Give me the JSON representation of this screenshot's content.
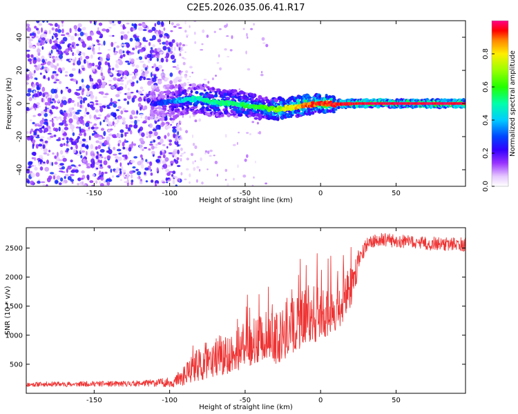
{
  "title": "C2E5.2026.035.06.41.R17",
  "chart_data": [
    {
      "type": "heatmap",
      "name": "spectrogram",
      "xlabel": "Height of straight line (km)",
      "ylabel": "Frequency (Hz)",
      "xlim": [
        -195,
        96
      ],
      "ylim": [
        -50,
        50
      ],
      "xticks": [
        -150,
        -100,
        -50,
        0,
        50
      ],
      "yticks": [
        -40,
        -20,
        0,
        20,
        40
      ],
      "colorbar": {
        "label": "Normalized spectral amplitude",
        "ticks": [
          0.0,
          0.2,
          0.4,
          0.6,
          0.8
        ],
        "range": [
          0,
          1
        ]
      },
      "noise_region_km": [
        -195,
        -93
      ],
      "signal_onset_km": -112,
      "ridge": [
        {
          "x": -112,
          "f": 0.0,
          "a": 0.22
        },
        {
          "x": -100,
          "f": 1.0,
          "a": 0.32
        },
        {
          "x": -90,
          "f": 2.5,
          "a": 0.42
        },
        {
          "x": -80,
          "f": 3.0,
          "a": 0.48
        },
        {
          "x": -70,
          "f": 0.5,
          "a": 0.5
        },
        {
          "x": -60,
          "f": 0.0,
          "a": 0.52
        },
        {
          "x": -50,
          "f": -1.0,
          "a": 0.55
        },
        {
          "x": -40,
          "f": -2.5,
          "a": 0.58
        },
        {
          "x": -30,
          "f": -3.5,
          "a": 0.65
        },
        {
          "x": -20,
          "f": -2.5,
          "a": 0.78
        },
        {
          "x": -10,
          "f": -1.0,
          "a": 0.88
        },
        {
          "x": 0,
          "f": 0.0,
          "a": 0.92
        },
        {
          "x": 10,
          "f": -0.5,
          "a": 0.95
        },
        {
          "x": 25,
          "f": 0.0,
          "a": 0.97
        },
        {
          "x": 50,
          "f": 0.0,
          "a": 0.98
        },
        {
          "x": 75,
          "f": 0.0,
          "a": 0.98
        },
        {
          "x": 96,
          "f": 0.0,
          "a": 0.98
        }
      ]
    },
    {
      "type": "line",
      "name": "snr",
      "xlabel": "Height of straight line (km)",
      "ylabel": "SNR (10 * v/v)",
      "xlim": [
        -195,
        96
      ],
      "ylim": [
        0,
        2850
      ],
      "xticks": [
        -150,
        -100,
        -50,
        0,
        50
      ],
      "yticks": [
        500,
        1000,
        1500,
        2000,
        2500
      ],
      "color": "#ee3333",
      "series": [
        {
          "name": "SNR",
          "x": [
            -195,
            -180,
            -165,
            -150,
            -135,
            -120,
            -110,
            -100,
            -95,
            -90,
            -85,
            -80,
            -75,
            -70,
            -65,
            -60,
            -55,
            -50,
            -45,
            -40,
            -35,
            -30,
            -25,
            -20,
            -15,
            -10,
            -5,
            0,
            5,
            10,
            15,
            20,
            25,
            30,
            35,
            40,
            50,
            60,
            70,
            80,
            96
          ],
          "y": [
            150,
            160,
            155,
            165,
            160,
            170,
            180,
            190,
            210,
            260,
            350,
            420,
            480,
            520,
            560,
            600,
            650,
            700,
            760,
            800,
            850,
            780,
            900,
            1000,
            1100,
            1150,
            1200,
            1250,
            1300,
            1380,
            1480,
            1700,
            2200,
            2550,
            2620,
            2650,
            2620,
            2600,
            2580,
            2570,
            2560
          ]
        }
      ],
      "noise_amplitude": [
        [
          -195,
          40
        ],
        [
          -120,
          50
        ],
        [
          -100,
          80
        ],
        [
          -90,
          150
        ],
        [
          -80,
          260
        ],
        [
          -60,
          320
        ],
        [
          -40,
          380
        ],
        [
          -20,
          430
        ],
        [
          0,
          420
        ],
        [
          20,
          320
        ],
        [
          25,
          200
        ],
        [
          30,
          110
        ],
        [
          96,
          120
        ]
      ]
    }
  ]
}
